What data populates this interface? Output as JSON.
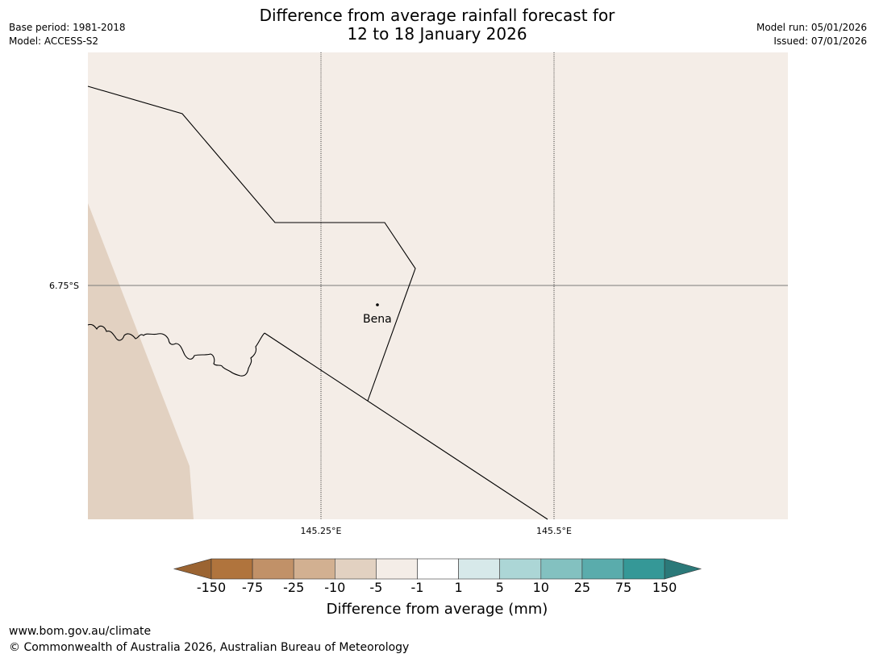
{
  "header": {
    "title_line1": "Difference from average rainfall forecast for",
    "title_line2": "12 to 18 January 2026",
    "base_period": "Base period: 1981-2018",
    "model": "Model: ACCESS-S2",
    "model_run": "Model run: 05/01/2026",
    "issued": "Issued: 07/01/2026"
  },
  "map": {
    "background_color": "#f4ede7",
    "dry_color": "#e2d1c1",
    "gridline_labels": {
      "lat": "6.75°S",
      "lon1": "145.25°E",
      "lon2": "145.5°E"
    },
    "place": {
      "name": "Bena"
    }
  },
  "legend": {
    "title": "Difference from average (mm)",
    "tick_labels": [
      "-150",
      "-75",
      "-25",
      "-10",
      "-5",
      "-1",
      "1",
      "5",
      "10",
      "25",
      "75",
      "150"
    ],
    "colors": {
      "below_min": "#9b6432",
      "bins": [
        "#b0743d",
        "#c19168",
        "#d2b091",
        "#e2d1c1",
        "#f4ede7",
        "#ffffff",
        "#d7e9ea",
        "#acd6d6",
        "#83c1c0",
        "#5aacac",
        "#359897"
      ],
      "above_max": "#2b7979"
    }
  },
  "footer": {
    "url": "www.bom.gov.au/climate",
    "copyright": "© Commonwealth of Australia 2026, Australian Bureau of Meteorology"
  }
}
